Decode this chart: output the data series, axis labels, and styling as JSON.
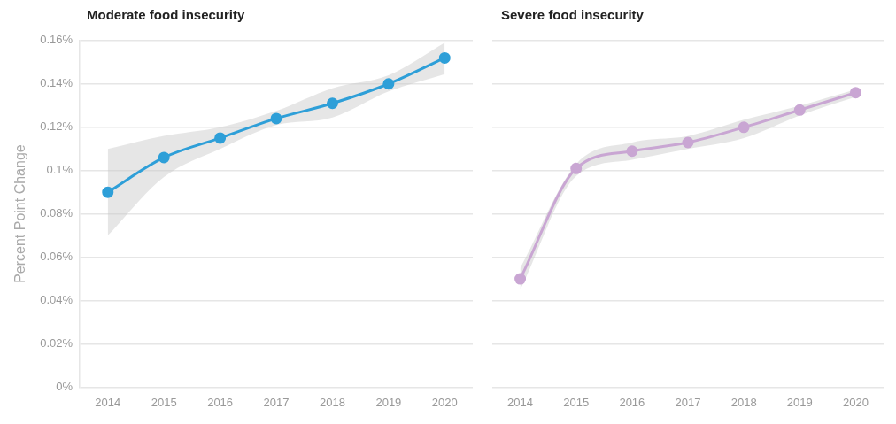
{
  "chart_data": [
    {
      "type": "line",
      "title": "Moderate food insecurity",
      "ylabel": "Percent Point Change",
      "categories": [
        "2014",
        "2015",
        "2016",
        "2017",
        "2018",
        "2019",
        "2020"
      ],
      "series": [
        {
          "color": "#2e9fd8",
          "values": [
            0.09,
            0.106,
            0.115,
            0.124,
            0.131,
            0.14,
            0.152
          ],
          "lower": [
            0.07,
            0.097,
            0.11,
            0.121,
            0.1245,
            0.1365,
            0.1445
          ],
          "upper": [
            0.11,
            0.116,
            0.12,
            0.1275,
            0.138,
            0.144,
            0.159
          ]
        }
      ],
      "ylim": [
        0,
        0.16
      ],
      "yticks": [
        {
          "value": 0,
          "label": "0%"
        },
        {
          "value": 0.02,
          "label": "0.02%"
        },
        {
          "value": 0.04,
          "label": "0.04%"
        },
        {
          "value": 0.06,
          "label": "0.06%"
        },
        {
          "value": 0.08,
          "label": "0.08%"
        },
        {
          "value": 0.1,
          "label": "0.1%"
        },
        {
          "value": 0.12,
          "label": "0.12%"
        },
        {
          "value": 0.14,
          "label": "0.14%"
        },
        {
          "value": 0.16,
          "label": "0.16%"
        }
      ],
      "grid": "y",
      "marker": "circle",
      "line_style": "solid"
    },
    {
      "type": "line",
      "title": "Severe food insecurity",
      "categories": [
        "2014",
        "2015",
        "2016",
        "2017",
        "2018",
        "2019",
        "2020"
      ],
      "series": [
        {
          "color": "#c9a6d3",
          "values": [
            0.05,
            0.101,
            0.109,
            0.113,
            0.12,
            0.128,
            0.136
          ],
          "lower": [
            0.045,
            0.0975,
            0.105,
            0.11,
            0.115,
            0.1255,
            0.134
          ],
          "upper": [
            0.055,
            0.103,
            0.113,
            0.116,
            0.1235,
            0.13,
            0.1375
          ]
        }
      ],
      "ylim": [
        0,
        0.16
      ],
      "yticks": [
        {
          "value": 0,
          "label": null
        },
        {
          "value": 0.02,
          "label": null
        },
        {
          "value": 0.04,
          "label": null
        },
        {
          "value": 0.06,
          "label": null
        },
        {
          "value": 0.08,
          "label": null
        },
        {
          "value": 0.1,
          "label": null
        },
        {
          "value": 0.12,
          "label": null
        },
        {
          "value": 0.14,
          "label": null
        },
        {
          "value": 0.16,
          "label": null
        }
      ],
      "tick_labels": "x",
      "grid": "y",
      "marker": "circle",
      "line_style": "solid"
    }
  ]
}
